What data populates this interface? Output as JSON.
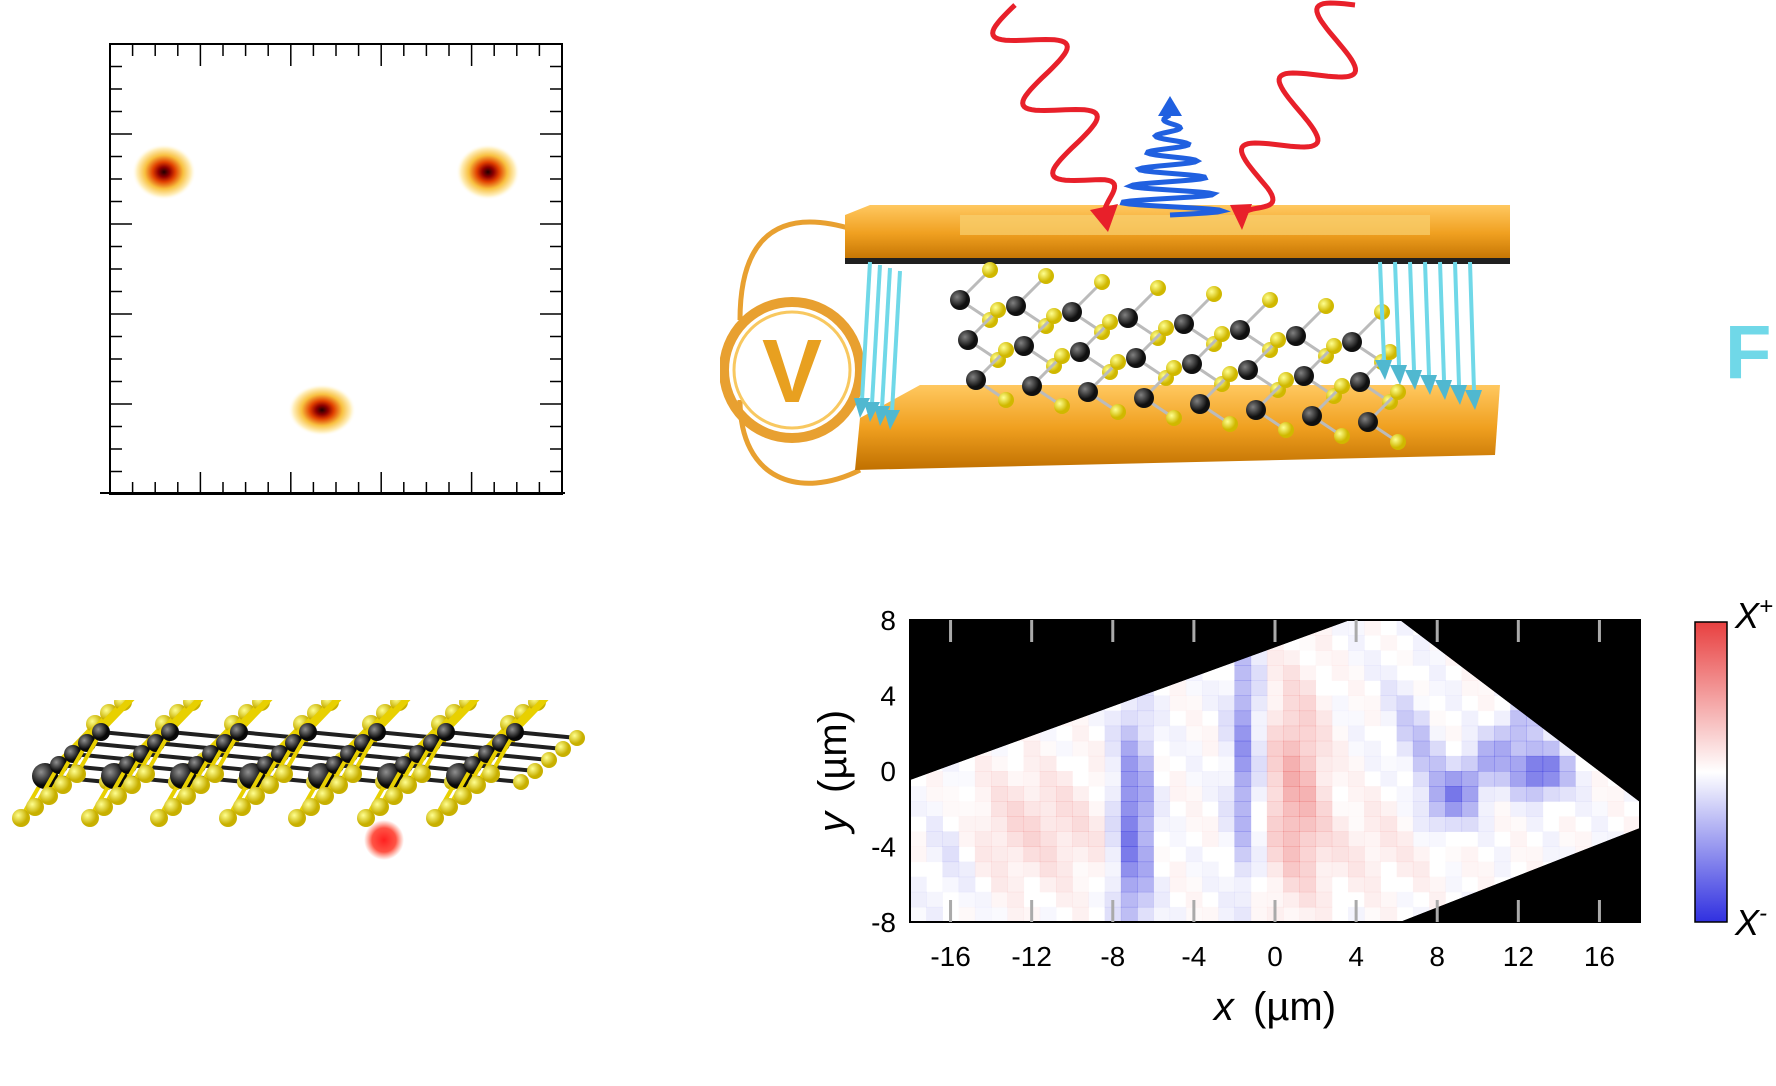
{
  "device_diagram": {
    "voltmeter_symbol": "V",
    "force_label": "F"
  },
  "map": {
    "colorbar_top": "X",
    "colorbar_top_sup": "+",
    "colorbar_bottom": "X",
    "colorbar_bottom_sup": "-"
  },
  "chart_data": {
    "type": "heatmap",
    "xlabel_var": "x",
    "xlabel_unit": "(µm)",
    "ylabel_var": "y",
    "ylabel_unit": "(µm)",
    "x_ticks": [
      "-16",
      "-12",
      "-8",
      "-4",
      "0",
      "4",
      "8",
      "12",
      "16"
    ],
    "y_ticks": [
      "8",
      "4",
      "0",
      "-4",
      "-8"
    ],
    "xlim": [
      -18,
      18
    ],
    "ylim": [
      -8,
      8
    ],
    "colorbar": [
      "X-",
      "X+"
    ],
    "features": [
      {
        "x": -7,
        "value": -0.8
      },
      {
        "x": -1.5,
        "value": -0.6
      },
      {
        "x": 0.5,
        "value": 0.6
      },
      {
        "x": 13,
        "value": -0.9
      }
    ]
  },
  "colors": {
    "gold": "#f0a020",
    "red_wave": "#e8202a",
    "blue_wave": "#2060e0",
    "force_arrow": "#70d8e8",
    "sulfur": "#f0e020",
    "metal": "#202020"
  }
}
